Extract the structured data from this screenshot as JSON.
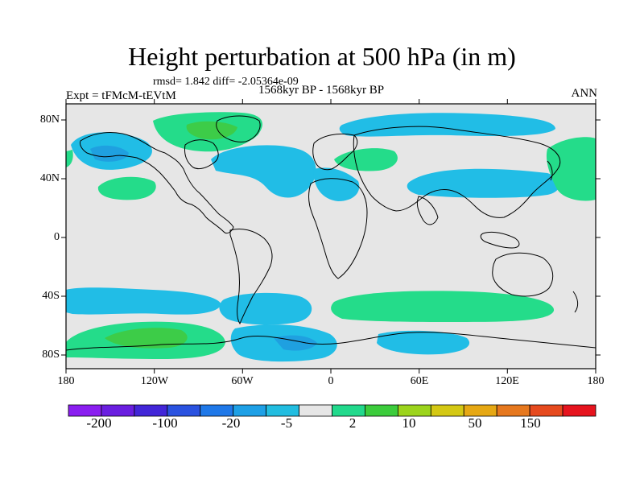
{
  "title": "Height perturbation at 500 hPa (in m)",
  "stats": "rmsd= 1.842 diff= -2.05364e-09",
  "period": "1568kyr BP - 1568kyr BP",
  "experiment": "Expt = tFMcM-tEVtM",
  "season": "ANN",
  "lat_ticks": [
    "80N",
    "40N",
    "0",
    "40S",
    "80S"
  ],
  "lon_ticks": [
    "180",
    "120W",
    "60W",
    "0",
    "60E",
    "120E",
    "180"
  ],
  "colorbar": {
    "labels": [
      "-200",
      "-100",
      "-20",
      "-5",
      "2",
      "10",
      "50",
      "150"
    ],
    "colors": [
      "#8a1ef0",
      "#6a1ee0",
      "#4226d8",
      "#2a52e0",
      "#1f78e8",
      "#1ea0e6",
      "#22bde0",
      "#e6e6e6",
      "#22d98c",
      "#3ccc3c",
      "#9cd41c",
      "#d4c814",
      "#e6a814",
      "#e6781e",
      "#e64a1e",
      "#e6141e"
    ]
  },
  "field_colors": {
    "background": "#e6e6e6",
    "light_blue": "#21bde6",
    "mid_blue": "#1fa0e0",
    "light_green": "#24dc8a",
    "mid_green": "#3dcc48",
    "coast": "#000000"
  }
}
